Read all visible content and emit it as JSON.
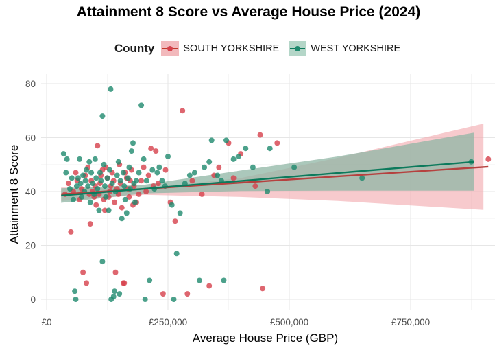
{
  "chart_data": {
    "type": "scatter",
    "title": "Attainment 8 Score vs Average House Price (2024)",
    "xlabel": "Average House Price (GBP)",
    "ylabel": "Attainment 8 Score",
    "xlim": [
      0,
      925000
    ],
    "ylim": [
      -3,
      82
    ],
    "x_ticks": [
      0,
      250000,
      500000,
      750000
    ],
    "x_tick_labels": [
      "£0",
      "£250,000",
      "£500,000",
      "£750,000"
    ],
    "y_ticks": [
      0,
      20,
      40,
      60,
      80
    ],
    "y_tick_labels": [
      "0",
      "20",
      "40",
      "60",
      "80"
    ],
    "grid": true,
    "legend": {
      "title": "County",
      "position": "top"
    },
    "series": [
      {
        "name": "SOUTH YORKSHIRE",
        "color": "#d6404b",
        "band_color": "#f2a6ab",
        "line_color": "#b5413f",
        "fit": {
          "x0": 30000,
          "y0": 39.0,
          "x1": 910000,
          "y1": 49.2
        },
        "band": {
          "x": [
            30000,
            200000,
            400000,
            600000,
            900000
          ],
          "lower": [
            36.5,
            38.8,
            38.0,
            36.5,
            33.2
          ],
          "upper": [
            41.5,
            41.2,
            45.0,
            52.5,
            65.2
          ]
        },
        "points": [
          [
            38000,
            39
          ],
          [
            45000,
            43
          ],
          [
            50000,
            25
          ],
          [
            55000,
            40
          ],
          [
            60000,
            47
          ],
          [
            63000,
            44
          ],
          [
            68000,
            37
          ],
          [
            72000,
            41
          ],
          [
            75000,
            10
          ],
          [
            80000,
            46
          ],
          [
            82000,
            6
          ],
          [
            85000,
            49
          ],
          [
            88000,
            39
          ],
          [
            90000,
            28
          ],
          [
            92000,
            44
          ],
          [
            95000,
            40
          ],
          [
            98000,
            38
          ],
          [
            100000,
            42
          ],
          [
            102000,
            35
          ],
          [
            105000,
            57
          ],
          [
            108000,
            39
          ],
          [
            110000,
            43
          ],
          [
            112000,
            46
          ],
          [
            115000,
            48
          ],
          [
            118000,
            37
          ],
          [
            120000,
            33
          ],
          [
            122000,
            49
          ],
          [
            125000,
            45
          ],
          [
            128000,
            38
          ],
          [
            130000,
            40
          ],
          [
            132000,
            42
          ],
          [
            135000,
            47
          ],
          [
            138000,
            44
          ],
          [
            140000,
            36
          ],
          [
            142000,
            10
          ],
          [
            145000,
            41
          ],
          [
            148000,
            39
          ],
          [
            150000,
            50
          ],
          [
            152000,
            43
          ],
          [
            155000,
            34
          ],
          [
            158000,
            6
          ],
          [
            160000,
            6
          ],
          [
            162000,
            47
          ],
          [
            165000,
            45
          ],
          [
            168000,
            41
          ],
          [
            170000,
            38
          ],
          [
            172000,
            44
          ],
          [
            175000,
            48
          ],
          [
            178000,
            35
          ],
          [
            180000,
            42
          ],
          [
            185000,
            36
          ],
          [
            190000,
            39
          ],
          [
            195000,
            44
          ],
          [
            200000,
            49
          ],
          [
            205000,
            40
          ],
          [
            210000,
            46
          ],
          [
            215000,
            56
          ],
          [
            220000,
            42
          ],
          [
            225000,
            55
          ],
          [
            230000,
            43
          ],
          [
            240000,
            2
          ],
          [
            245000,
            48
          ],
          [
            255000,
            36
          ],
          [
            265000,
            29
          ],
          [
            280000,
            70
          ],
          [
            290000,
            2
          ],
          [
            300000,
            44
          ],
          [
            320000,
            39
          ],
          [
            335000,
            5
          ],
          [
            345000,
            46
          ],
          [
            355000,
            49
          ],
          [
            375000,
            58
          ],
          [
            385000,
            45
          ],
          [
            400000,
            54
          ],
          [
            430000,
            42
          ],
          [
            440000,
            61
          ],
          [
            445000,
            4
          ],
          [
            475000,
            58
          ],
          [
            910000,
            52
          ]
        ]
      },
      {
        "name": "WEST YORKSHIRE",
        "color": "#1f8a6e",
        "band_color": "#8fb5a4",
        "line_color": "#0c7a5c",
        "fit": {
          "x0": 30000,
          "y0": 38.5,
          "x1": 880000,
          "y1": 51.0
        },
        "band": {
          "x": [
            30000,
            200000,
            400000,
            600000,
            880000
          ],
          "lower": [
            35.8,
            39.3,
            40.2,
            40.3,
            40.3
          ],
          "upper": [
            41.2,
            42.5,
            47.8,
            53.0,
            61.8
          ]
        },
        "points": [
          [
            35000,
            54
          ],
          [
            40000,
            47
          ],
          [
            42000,
            52
          ],
          [
            48000,
            41
          ],
          [
            52000,
            45
          ],
          [
            55000,
            37
          ],
          [
            58000,
            3
          ],
          [
            60000,
            0
          ],
          [
            62000,
            42
          ],
          [
            65000,
            45
          ],
          [
            68000,
            52
          ],
          [
            70000,
            43
          ],
          [
            72000,
            38
          ],
          [
            75000,
            46
          ],
          [
            78000,
            40
          ],
          [
            80000,
            44
          ],
          [
            82000,
            48
          ],
          [
            85000,
            42
          ],
          [
            88000,
            51
          ],
          [
            90000,
            36
          ],
          [
            92000,
            47
          ],
          [
            95000,
            43
          ],
          [
            98000,
            39
          ],
          [
            100000,
            52
          ],
          [
            102000,
            45
          ],
          [
            105000,
            41
          ],
          [
            108000,
            33
          ],
          [
            110000,
            47
          ],
          [
            112000,
            44
          ],
          [
            115000,
            14
          ],
          [
            115000,
            68
          ],
          [
            118000,
            50
          ],
          [
            120000,
            42
          ],
          [
            122000,
            38
          ],
          [
            125000,
            45
          ],
          [
            128000,
            33
          ],
          [
            130000,
            48
          ],
          [
            132000,
            78
          ],
          [
            133000,
            0
          ],
          [
            135000,
            43
          ],
          [
            138000,
            1
          ],
          [
            140000,
            3
          ],
          [
            142000,
            40
          ],
          [
            145000,
            46
          ],
          [
            148000,
            51
          ],
          [
            150000,
            2
          ],
          [
            152000,
            44
          ],
          [
            155000,
            30
          ],
          [
            158000,
            47
          ],
          [
            160000,
            42
          ],
          [
            162000,
            37
          ],
          [
            165000,
            32
          ],
          [
            168000,
            45
          ],
          [
            170000,
            49
          ],
          [
            172000,
            41
          ],
          [
            175000,
            55
          ],
          [
            178000,
            58
          ],
          [
            180000,
            43
          ],
          [
            182000,
            36
          ],
          [
            185000,
            44
          ],
          [
            190000,
            47
          ],
          [
            195000,
            72
          ],
          [
            200000,
            52
          ],
          [
            203000,
            0
          ],
          [
            206000,
            44
          ],
          [
            212000,
            7
          ],
          [
            218000,
            48
          ],
          [
            222000,
            41
          ],
          [
            228000,
            47
          ],
          [
            232000,
            49
          ],
          [
            238000,
            44
          ],
          [
            244000,
            42
          ],
          [
            250000,
            53
          ],
          [
            258000,
            35
          ],
          [
            262000,
            0
          ],
          [
            268000,
            17
          ],
          [
            275000,
            32
          ],
          [
            285000,
            43
          ],
          [
            295000,
            46
          ],
          [
            305000,
            47
          ],
          [
            315000,
            7
          ],
          [
            325000,
            49
          ],
          [
            335000,
            51
          ],
          [
            340000,
            59
          ],
          [
            352000,
            46
          ],
          [
            360000,
            44
          ],
          [
            365000,
            7
          ],
          [
            370000,
            59
          ],
          [
            385000,
            52
          ],
          [
            395000,
            53
          ],
          [
            410000,
            56
          ],
          [
            425000,
            49
          ],
          [
            455000,
            40
          ],
          [
            460000,
            56
          ],
          [
            510000,
            49
          ],
          [
            650000,
            45
          ],
          [
            875000,
            51
          ]
        ]
      }
    ]
  }
}
